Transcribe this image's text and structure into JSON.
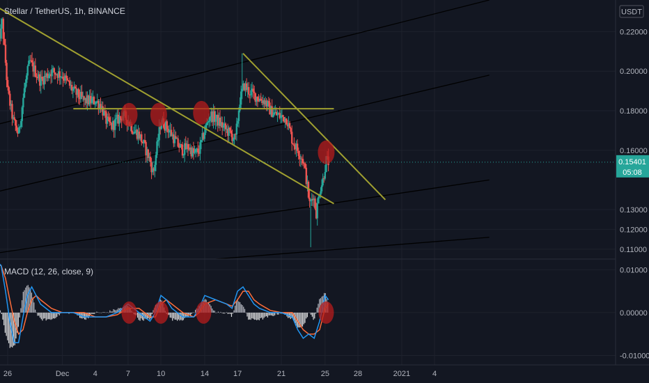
{
  "header": {
    "symbol_title": "Stellar / TetherUS, 1h, BINANCE",
    "currency": "USDT"
  },
  "price_badge": {
    "value": "0.15401",
    "countdown": "05:08",
    "color": "#26a69a"
  },
  "indicator": {
    "label": "MACD (12, 26, close, 9)"
  },
  "colors": {
    "background": "#131722",
    "up": "#26a69a",
    "down": "#ef5350",
    "trendline": "#a0a030",
    "channel": "#000000",
    "macd_line": "#2196f3",
    "signal_line": "#ff6d3a",
    "highlight": "#b71c1c"
  },
  "chart_data": [
    {
      "type": "candlestick",
      "title": "Stellar / TetherUS, 1h, BINANCE",
      "ylabel": "USDT",
      "ylim": [
        0.105,
        0.236
      ],
      "yticks": [
        "0.11000",
        "0.12000",
        "0.13000",
        "0.16000",
        "0.18000",
        "0.20000",
        "0.22000"
      ],
      "xtick_labels": [
        "26",
        "Dec",
        "4",
        "7",
        "10",
        "14",
        "17",
        "21",
        "25",
        "28",
        "2021",
        "4"
      ],
      "xtick_days": [
        -4,
        1,
        4,
        7,
        10,
        14,
        17,
        21,
        25,
        28,
        32,
        35
      ],
      "close_path": {
        "days": [
          -5,
          -4.8,
          -4.5,
          -4.2,
          -4,
          -3.5,
          -3,
          -2.5,
          -2,
          -1,
          0,
          1,
          2,
          3,
          4,
          4.5,
          5,
          5.5,
          6,
          6.5,
          7,
          7.5,
          8,
          8.5,
          9,
          9.3,
          9.6,
          10,
          10.5,
          11,
          11.5,
          12,
          12.5,
          13,
          13.5,
          14,
          14.5,
          15,
          15.5,
          16,
          16.4,
          16.8,
          17.2,
          17.6,
          18,
          18.5,
          19,
          19.5,
          20,
          20.5,
          21,
          21.5,
          22,
          22.5,
          23,
          23.3,
          23.6,
          23.9,
          24.2,
          24.5,
          24.8,
          25.1,
          25.3
        ],
        "close": [
          0.2,
          0.215,
          0.225,
          0.205,
          0.19,
          0.175,
          0.168,
          0.19,
          0.205,
          0.195,
          0.2,
          0.198,
          0.19,
          0.185,
          0.185,
          0.183,
          0.175,
          0.172,
          0.175,
          0.178,
          0.175,
          0.17,
          0.168,
          0.162,
          0.155,
          0.148,
          0.16,
          0.175,
          0.172,
          0.168,
          0.163,
          0.16,
          0.162,
          0.158,
          0.16,
          0.17,
          0.178,
          0.176,
          0.173,
          0.17,
          0.168,
          0.165,
          0.185,
          0.193,
          0.19,
          0.188,
          0.186,
          0.185,
          0.18,
          0.178,
          0.177,
          0.176,
          0.165,
          0.16,
          0.155,
          0.145,
          0.132,
          0.138,
          0.128,
          0.14,
          0.145,
          0.155,
          0.154
        ]
      },
      "marked_extremes": [
        {
          "day": 17.4,
          "high": 0.209
        },
        {
          "day": 23.7,
          "low": 0.111
        }
      ],
      "last_price": 0.15401,
      "trendlines": [
        {
          "kind": "descending resistance",
          "from": {
            "day": -4.8,
            "price": 0.232
          },
          "to": {
            "day": 25.8,
            "price": 0.133
          }
        },
        {
          "kind": "horizontal level",
          "from": {
            "day": 2.0,
            "price": 0.181
          },
          "to": {
            "day": 25.8,
            "price": 0.181
          }
        },
        {
          "kind": "descending resistance",
          "from": {
            "day": 17.5,
            "price": 0.209
          },
          "to": {
            "day": 30.5,
            "price": 0.135
          }
        }
      ],
      "channel_lines": [
        {
          "from": {
            "day": -5,
            "price": 0.173
          },
          "to": {
            "day": 40,
            "price": 0.236
          }
        },
        {
          "from": {
            "day": -5,
            "price": 0.139
          },
          "to": {
            "day": 40,
            "price": 0.198
          }
        },
        {
          "from": {
            "day": -5,
            "price": 0.108
          },
          "to": {
            "day": 40,
            "price": 0.145
          }
        },
        {
          "from": {
            "day": 15,
            "price": 0.105
          },
          "to": {
            "day": 40,
            "price": 0.116
          }
        }
      ],
      "highlights": [
        {
          "day": 7.1,
          "price": 0.178
        },
        {
          "day": 9.8,
          "price": 0.178
        },
        {
          "day": 13.7,
          "price": 0.179
        },
        {
          "day": 25.1,
          "price": 0.159
        }
      ]
    },
    {
      "type": "line",
      "title": "MACD (12, 26, close, 9)",
      "ylim": [
        -0.0122,
        0.0125
      ],
      "yticks": [
        "0.01000",
        "0.00000",
        "-0.01000"
      ],
      "series": [
        {
          "kind": "macd",
          "days": [
            -5,
            -4.6,
            -4.2,
            -3.8,
            -3.4,
            -3,
            -2.6,
            -2.2,
            -1.8,
            -1.4,
            -1,
            0,
            1,
            2,
            3,
            4,
            5,
            6,
            7,
            8,
            8.5,
            9,
            9.5,
            10,
            10.5,
            11,
            12,
            13,
            13.5,
            14,
            15,
            16,
            16.5,
            17,
            17.5,
            18,
            18.5,
            19,
            20,
            21,
            22,
            22.5,
            23,
            23.5,
            24,
            24.5,
            25,
            25.3
          ],
          "values": [
            0.012,
            0.011,
            0.005,
            -0.002,
            -0.007,
            -0.007,
            -0.001,
            0.004,
            0.006,
            0.004,
            0.002,
            0.0,
            0.0,
            0.0,
            -0.001,
            -0.001,
            -0.001,
            0.0,
            0.002,
            0.0,
            -0.001,
            -0.002,
            0.0,
            0.004,
            0.003,
            0.001,
            -0.001,
            -0.001,
            0.001,
            0.004,
            0.003,
            0.002,
            0.001,
            0.005,
            0.006,
            0.004,
            0.002,
            0.001,
            0.0,
            0.0,
            -0.001,
            -0.004,
            -0.006,
            -0.005,
            -0.006,
            -0.002,
            0.004,
            0.003
          ]
        },
        {
          "kind": "signal",
          "days": [
            -5,
            -4.6,
            -4.2,
            -3.8,
            -3.4,
            -3,
            -2.6,
            -2.2,
            -1.8,
            -1.4,
            -1,
            0,
            1,
            2,
            3,
            4,
            5,
            6,
            7,
            8,
            8.5,
            9,
            9.5,
            10,
            10.5,
            11,
            12,
            13,
            13.5,
            14,
            15,
            16,
            16.5,
            17,
            17.5,
            18,
            18.5,
            19,
            20,
            21,
            22,
            22.5,
            23,
            23.5,
            24,
            24.5,
            25,
            25.3
          ],
          "values": [
            0.011,
            0.011,
            0.008,
            0.003,
            -0.002,
            -0.005,
            -0.004,
            0.0,
            0.003,
            0.004,
            0.003,
            0.001,
            0.0,
            0.0,
            0.0,
            -0.001,
            -0.001,
            -0.0005,
            0.001,
            0.001,
            0.0,
            -0.001,
            -0.001,
            0.002,
            0.003,
            0.002,
            0.0,
            -0.001,
            0.0,
            0.002,
            0.003,
            0.002,
            0.0015,
            0.003,
            0.005,
            0.005,
            0.003,
            0.002,
            0.0005,
            0.0,
            0.0,
            -0.002,
            -0.004,
            -0.005,
            -0.005,
            -0.004,
            0.001,
            0.002
          ]
        }
      ],
      "highlights": [
        {
          "day": 7.1,
          "value": 0.0
        },
        {
          "day": 10.0,
          "value": 0.0
        },
        {
          "day": 13.9,
          "value": 0.0
        },
        {
          "day": 25.1,
          "value": 0.0
        }
      ]
    }
  ]
}
